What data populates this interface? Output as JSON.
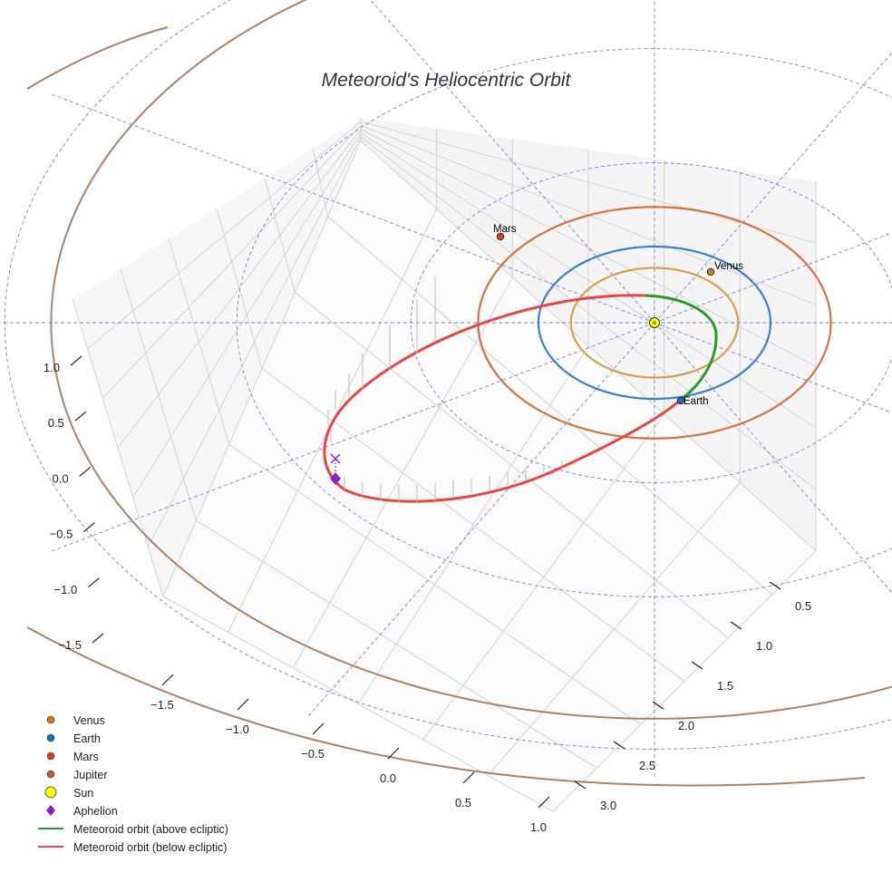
{
  "chart_data": {
    "type": "3d-line",
    "title": "Meteoroid's Heliocentric Orbit",
    "axes": {
      "x": {
        "ticks": [
          "−1.5",
          "−1.0",
          "−0.5",
          "0.0",
          "0.5",
          "1.0"
        ],
        "values": [
          -1.5,
          -1.0,
          -0.5,
          0.0,
          0.5,
          1.0
        ]
      },
      "y": {
        "ticks": [
          "0.5",
          "1.0",
          "1.5",
          "2.0",
          "2.5",
          "3.0"
        ],
        "values": [
          0.5,
          1.0,
          1.5,
          2.0,
          2.5,
          3.0
        ]
      },
      "z": {
        "ticks": [
          "1.0",
          "0.5",
          "0.0",
          "−0.5",
          "−1.0",
          "−1.5"
        ],
        "values": [
          1.0,
          0.5,
          0.0,
          -0.5,
          -1.0,
          -1.5
        ]
      }
    },
    "planet_orbits": [
      {
        "name": "Venus",
        "radius_au": 0.72,
        "color": "#d4a24c"
      },
      {
        "name": "Earth",
        "radius_au": 1.0,
        "color": "#3a7fd0"
      },
      {
        "name": "Mars",
        "radius_au": 1.52,
        "color": "#d9703f"
      },
      {
        "name": "Jupiter",
        "radius_au": 5.2,
        "color": "#b08060"
      }
    ],
    "planets": [
      {
        "name": "Venus",
        "label": "Venus",
        "color": "#cc7a22"
      },
      {
        "name": "Earth",
        "label": "Earth",
        "color": "#1f6fb4"
      },
      {
        "name": "Mars",
        "label": "Mars",
        "color": "#c4481e"
      }
    ],
    "meteoroid_orbit": {
      "above_color": "#2a9a2a",
      "below_color": "#e84545"
    },
    "aphelion_color": "#8b1fc4",
    "grid_color": "#6a6ae0",
    "legend": [
      {
        "label": "Venus",
        "marker": "circle",
        "color": "#cc7a22"
      },
      {
        "label": "Earth",
        "marker": "circle",
        "color": "#1f6fb4"
      },
      {
        "label": "Mars",
        "marker": "circle",
        "color": "#c4481e"
      },
      {
        "label": "Jupiter",
        "marker": "circle",
        "color": "#b0603a"
      },
      {
        "label": "Sun",
        "marker": "sun",
        "color": "#ffff00"
      },
      {
        "label": "Aphelion",
        "marker": "diamond",
        "color": "#8b1fc4"
      },
      {
        "label": "Meteoroid orbit (above ecliptic)",
        "marker": "line",
        "color": "#2a9a2a"
      },
      {
        "label": "Meteoroid orbit (below ecliptic)",
        "marker": "line",
        "color": "#e84545"
      }
    ]
  }
}
